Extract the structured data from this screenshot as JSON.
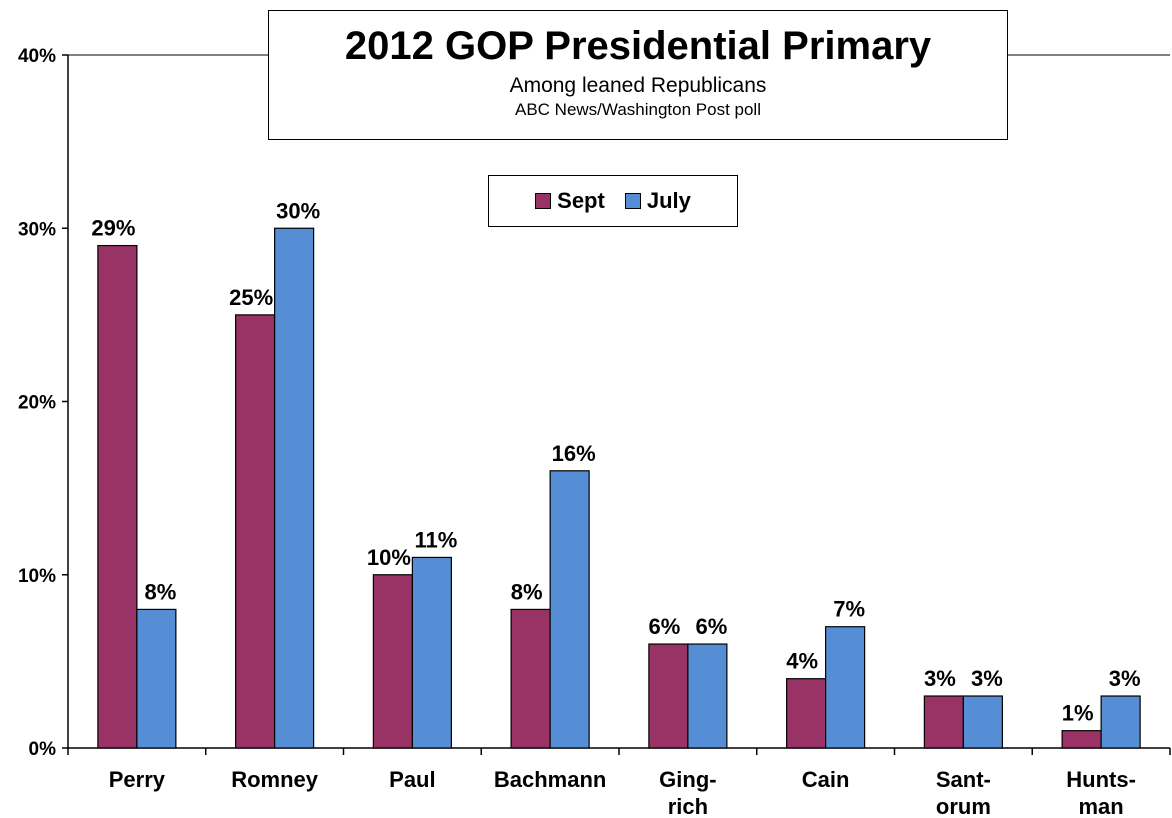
{
  "chart_data": {
    "type": "bar",
    "title": "2012 GOP Presidential Primary",
    "subtitle": "Among leaned Republicans",
    "source": "ABC News/Washington  Post poll",
    "categories": [
      [
        "Perry"
      ],
      [
        "Romney"
      ],
      [
        "Paul"
      ],
      [
        "Bachmann"
      ],
      [
        "Ging-",
        "rich"
      ],
      [
        "Cain"
      ],
      [
        "Sant-",
        "orum"
      ],
      [
        "Hunts-",
        "man"
      ]
    ],
    "series": [
      {
        "name": "Sept",
        "color": "#993366",
        "values": [
          29,
          25,
          10,
          8,
          6,
          4,
          3,
          1
        ]
      },
      {
        "name": "July",
        "color": "#558ED5",
        "values": [
          8,
          30,
          11,
          16,
          6,
          7,
          3,
          3
        ]
      }
    ],
    "value_suffix": "%",
    "ylim": [
      0,
      40
    ],
    "yticks": [
      0,
      10,
      20,
      30,
      40
    ],
    "ytick_labels": [
      "0%",
      "10%",
      "20%",
      "30%",
      "40%"
    ],
    "grid": false,
    "legend_position": "top-center"
  }
}
